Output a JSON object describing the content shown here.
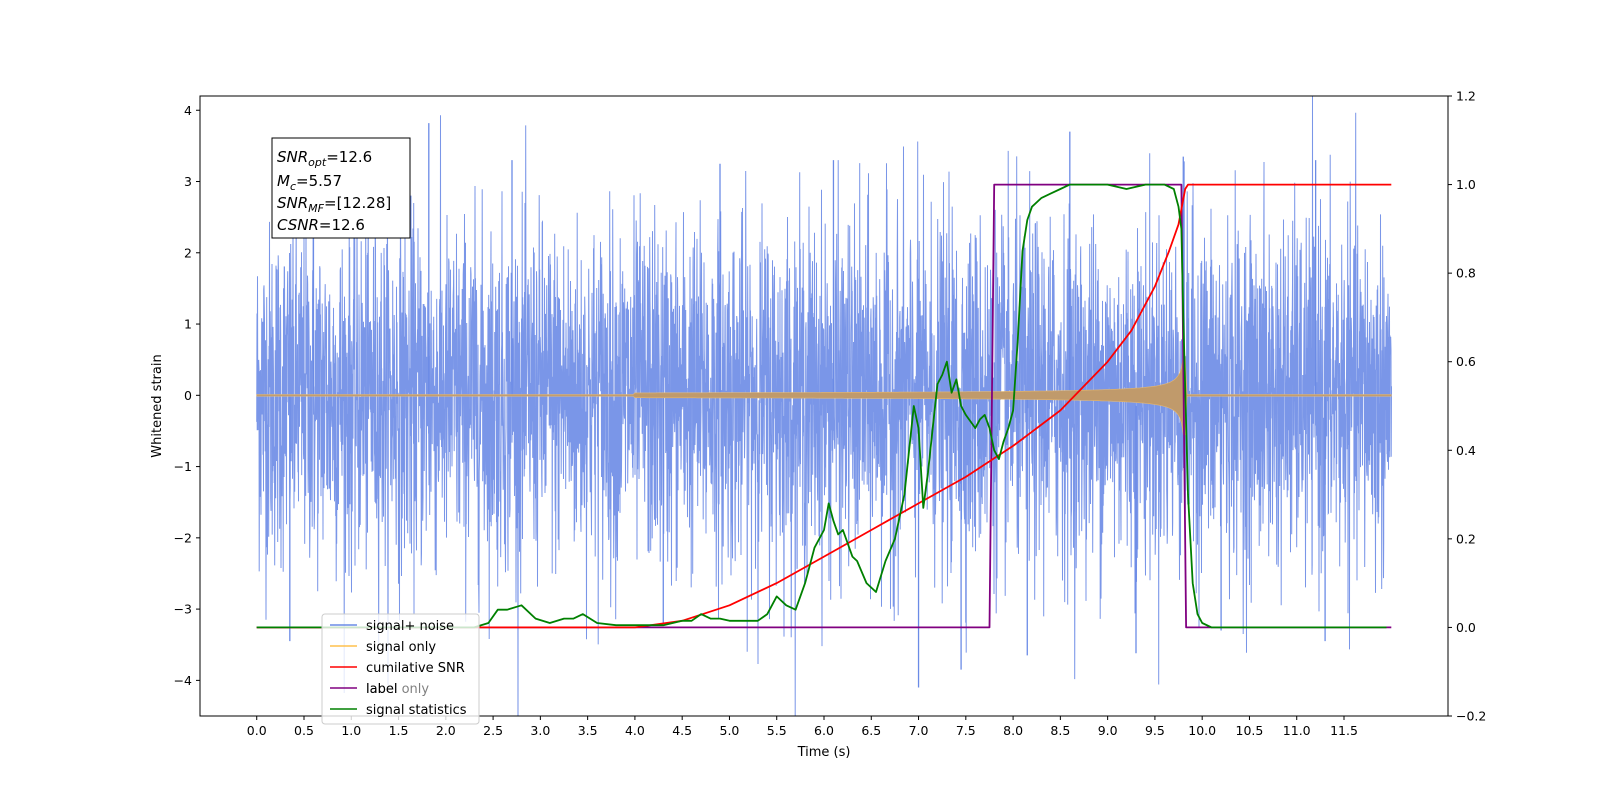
{
  "chart_data": {
    "type": "line",
    "xlabel": "Time (s)",
    "ylabel": "Whitened strain",
    "xlim": [
      -0.6,
      12.6
    ],
    "ylim": [
      -4.5,
      4.2
    ],
    "y2lim": [
      -0.2,
      1.2
    ],
    "x_ticks": [
      0.0,
      0.5,
      1.0,
      1.5,
      2.0,
      2.5,
      3.0,
      3.5,
      4.0,
      4.5,
      5.0,
      5.5,
      6.0,
      6.5,
      7.0,
      7.5,
      8.0,
      8.5,
      9.0,
      9.5,
      10.0,
      10.5,
      11.0,
      11.5
    ],
    "x_tick_labels": [
      "0.0",
      "0.5",
      "1.0",
      "1.5",
      "2.0",
      "2.5",
      "3.0",
      "3.5",
      "4.0",
      "4.5",
      "5.0",
      "5.5",
      "6.0",
      "6.5",
      "7.0",
      "7.5",
      "8.0",
      "8.5",
      "9.0",
      "9.5",
      "10.0",
      "10.5",
      "11.0",
      "11.5"
    ],
    "y_ticks": [
      4,
      3,
      2,
      1,
      0,
      -1,
      -2,
      -3,
      -4
    ],
    "y_tick_labels": [
      "4",
      "3",
      "2",
      "1",
      "0",
      "−1",
      "−2",
      "−3",
      "−4"
    ],
    "y2_ticks": [
      1.2,
      1.0,
      0.8,
      0.6,
      0.4,
      0.2,
      0.0,
      -0.2
    ],
    "y2_tick_labels": [
      "1.2",
      "1.0",
      "0.8",
      "0.6",
      "0.4",
      "0.2",
      "0.0",
      "−0.2"
    ],
    "stats_box": {
      "snr_opt": {
        "main": "SNR",
        "sub": "opt",
        "value": "=12.6"
      },
      "mc": {
        "main": "M",
        "sub": "c",
        "value": "=5.57"
      },
      "snr_mf": {
        "main": "SNR",
        "sub": "MF",
        "value": "=[12.28]"
      },
      "csnr": {
        "main": "CSNR",
        "value": "=12.6"
      }
    },
    "series": [
      {
        "name": "signal+ noise",
        "axis": "left",
        "color": "#6b8be6",
        "kind": "noise",
        "x_range": [
          0.0,
          12.0
        ],
        "typical_envelope": [
          -1.5,
          1.5
        ],
        "spikes": [
          {
            "x": 1.82,
            "y": 3.82
          },
          {
            "x": 8.6,
            "y": 3.7
          },
          {
            "x": 6.1,
            "y": 3.3
          },
          {
            "x": 9.8,
            "y": 3.35
          },
          {
            "x": 11.2,
            "y": 3.3
          },
          {
            "x": 2.7,
            "y": 3.3
          },
          {
            "x": 4.9,
            "y": 3.25
          },
          {
            "x": 0.6,
            "y": 3.1
          },
          {
            "x": 7.0,
            "y": -4.1
          },
          {
            "x": 7.45,
            "y": -3.85
          },
          {
            "x": 8.15,
            "y": -3.65
          },
          {
            "x": 9.3,
            "y": -3.62
          },
          {
            "x": 0.35,
            "y": -3.45
          },
          {
            "x": 11.3,
            "y": -3.45
          },
          {
            "x": 4.3,
            "y": -3.2
          },
          {
            "x": 10.2,
            "y": -3.3
          }
        ]
      },
      {
        "name": "signal only",
        "axis": "left",
        "color": "#ffc04d",
        "kind": "chirp",
        "start": 4.0,
        "end": 9.82,
        "peak_amplitude": 0.65
      },
      {
        "name": "cumilative SNR",
        "axis": "right",
        "color": "#ff0000",
        "x": [
          0.0,
          4.0,
          4.5,
          5.0,
          5.5,
          6.0,
          6.5,
          7.0,
          7.5,
          8.0,
          8.5,
          9.0,
          9.25,
          9.5,
          9.65,
          9.75,
          9.82,
          9.85,
          12.0
        ],
        "y": [
          0.0,
          0.0,
          0.015,
          0.05,
          0.1,
          0.16,
          0.22,
          0.28,
          0.34,
          0.41,
          0.49,
          0.6,
          0.67,
          0.77,
          0.85,
          0.91,
          0.99,
          1.0,
          1.0
        ]
      },
      {
        "name": "label",
        "axis": "right",
        "color": "#800080",
        "x": [
          0.0,
          7.75,
          7.8,
          9.78,
          9.83,
          12.0
        ],
        "y": [
          0.0,
          0.0,
          1.0,
          1.0,
          0.0,
          0.0
        ]
      },
      {
        "name": "label only",
        "axis": "right",
        "color": "#ffffff",
        "x": [],
        "y": []
      },
      {
        "name": "signal statistics",
        "axis": "right",
        "color": "#008000",
        "x": [
          0.0,
          2.3,
          2.45,
          2.55,
          2.65,
          2.8,
          2.95,
          3.1,
          3.25,
          3.35,
          3.45,
          3.6,
          3.8,
          4.0,
          4.3,
          4.5,
          4.6,
          4.7,
          4.8,
          4.9,
          5.0,
          5.1,
          5.2,
          5.3,
          5.4,
          5.5,
          5.6,
          5.7,
          5.8,
          5.9,
          6.0,
          6.05,
          6.1,
          6.15,
          6.2,
          6.3,
          6.35,
          6.45,
          6.55,
          6.65,
          6.75,
          6.85,
          6.95,
          7.0,
          7.05,
          7.1,
          7.15,
          7.2,
          7.25,
          7.3,
          7.35,
          7.4,
          7.45,
          7.5,
          7.6,
          7.65,
          7.7,
          7.75,
          7.8,
          7.85,
          7.9,
          7.95,
          8.0,
          8.05,
          8.1,
          8.15,
          8.2,
          8.3,
          8.4,
          8.5,
          8.6,
          8.8,
          9.0,
          9.2,
          9.4,
          9.6,
          9.7,
          9.75,
          9.78,
          9.8,
          9.85,
          9.9,
          9.95,
          10.0,
          10.1,
          11.95
        ],
        "y": [
          0.0,
          0.0,
          0.01,
          0.04,
          0.04,
          0.05,
          0.02,
          0.01,
          0.02,
          0.02,
          0.03,
          0.01,
          0.005,
          0.005,
          0.005,
          0.015,
          0.015,
          0.03,
          0.02,
          0.02,
          0.015,
          0.015,
          0.015,
          0.015,
          0.03,
          0.07,
          0.05,
          0.04,
          0.1,
          0.18,
          0.22,
          0.28,
          0.24,
          0.21,
          0.22,
          0.16,
          0.15,
          0.1,
          0.08,
          0.15,
          0.2,
          0.3,
          0.5,
          0.45,
          0.27,
          0.35,
          0.45,
          0.55,
          0.57,
          0.6,
          0.53,
          0.56,
          0.5,
          0.48,
          0.45,
          0.47,
          0.48,
          0.45,
          0.4,
          0.38,
          0.42,
          0.45,
          0.49,
          0.65,
          0.85,
          0.92,
          0.95,
          0.97,
          0.98,
          0.99,
          1.0,
          1.0,
          1.0,
          0.99,
          1.0,
          1.0,
          0.99,
          0.95,
          0.9,
          0.7,
          0.3,
          0.1,
          0.03,
          0.01,
          0.0,
          0.0
        ]
      }
    ]
  }
}
